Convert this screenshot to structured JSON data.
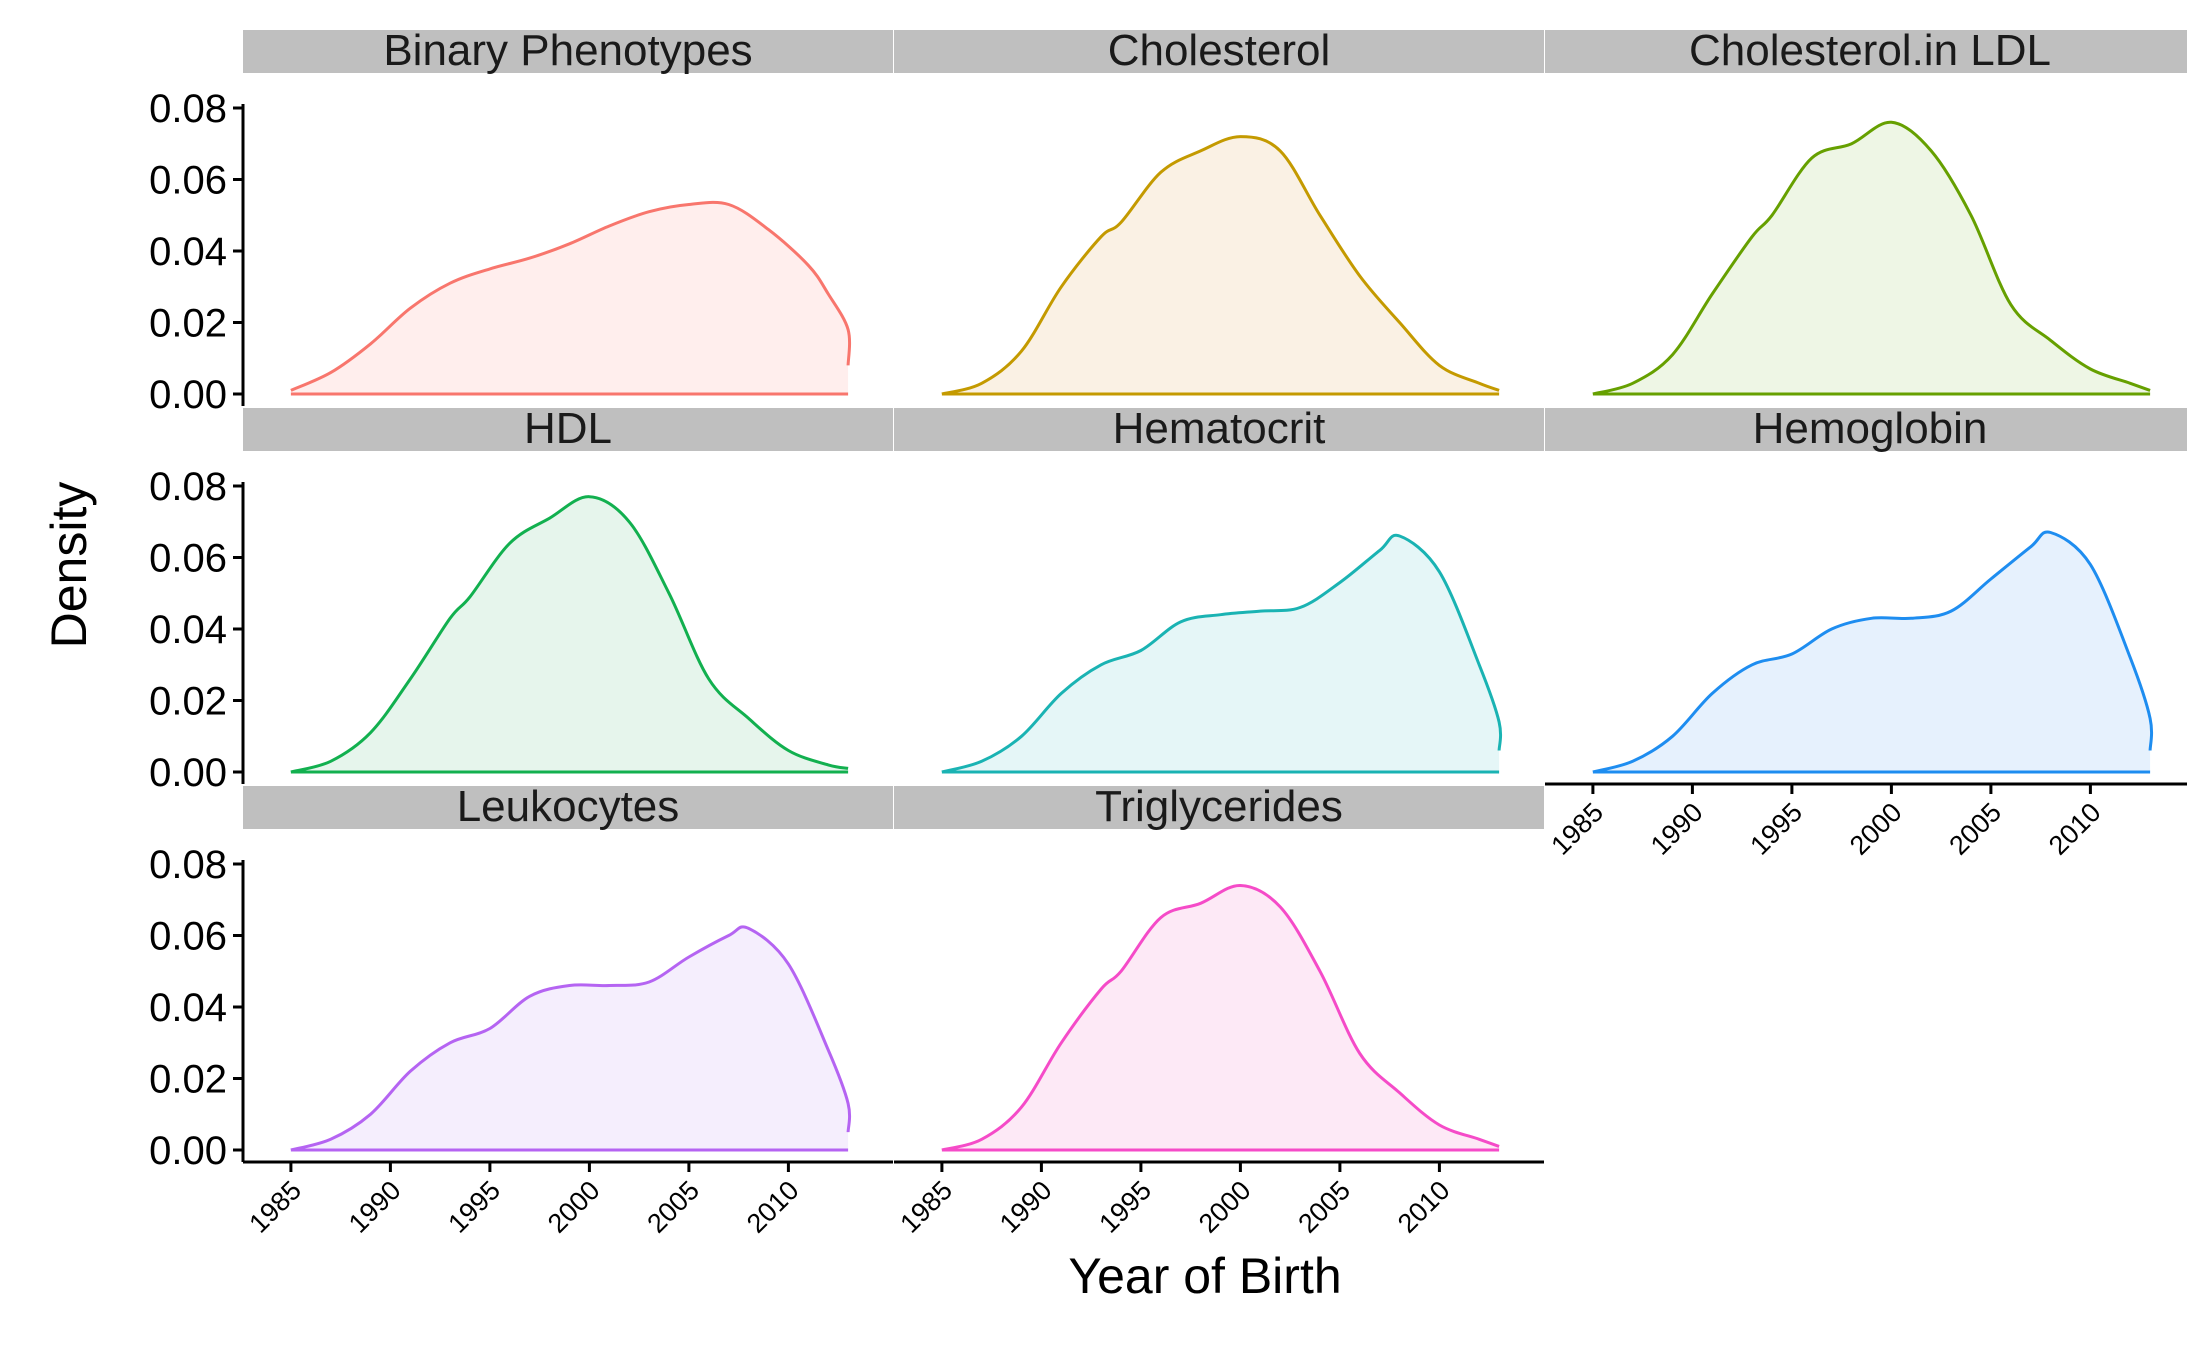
{
  "chart_data": {
    "type": "area",
    "chart_kind": "faceted density plot",
    "xlabel": "Year of Birth",
    "ylabel": "Density",
    "xlim": [
      1984,
      2014
    ],
    "ylim": [
      0,
      0.08
    ],
    "x_ticks": [
      1985,
      1990,
      1995,
      2000,
      2005,
      2010
    ],
    "y_ticks": [
      "0.00",
      "0.02",
      "0.04",
      "0.06",
      "0.08"
    ],
    "grid": false,
    "legend": "none",
    "facets": [
      {
        "name": "Binary Phenotypes",
        "color": "#F8766D",
        "fill": "#FFEEED",
        "x": [
          1985,
          1987,
          1989,
          1991,
          1993,
          1995,
          1997,
          1999,
          2001,
          2003,
          2005,
          2007,
          2009,
          2011,
          2012,
          2013,
          2013
        ],
        "y": [
          0.001,
          0.006,
          0.014,
          0.024,
          0.031,
          0.035,
          0.038,
          0.042,
          0.047,
          0.051,
          0.053,
          0.053,
          0.046,
          0.036,
          0.028,
          0.018,
          0.008
        ]
      },
      {
        "name": "Cholesterol",
        "color": "#C49A00",
        "fill": "#FAF1E4",
        "x": [
          1985,
          1987,
          1989,
          1991,
          1993,
          1994,
          1996,
          1998,
          2000,
          2002,
          2004,
          2006,
          2008,
          2010,
          2012,
          2013
        ],
        "y": [
          0.0,
          0.003,
          0.012,
          0.03,
          0.044,
          0.048,
          0.062,
          0.068,
          0.072,
          0.068,
          0.05,
          0.033,
          0.02,
          0.008,
          0.003,
          0.001
        ]
      },
      {
        "name": "Cholesterol.in LDL",
        "color": "#66A000",
        "fill": "#EEF6E5",
        "x": [
          1985,
          1987,
          1989,
          1991,
          1993,
          1994,
          1996,
          1998,
          2000,
          2002,
          2004,
          2006,
          2008,
          2010,
          2012,
          2013
        ],
        "y": [
          0.0,
          0.003,
          0.011,
          0.028,
          0.044,
          0.05,
          0.066,
          0.07,
          0.076,
          0.068,
          0.05,
          0.025,
          0.015,
          0.007,
          0.003,
          0.001
        ]
      },
      {
        "name": "HDL",
        "color": "#12B04F",
        "fill": "#E6F5EC",
        "x": [
          1985,
          1987,
          1989,
          1991,
          1993,
          1994,
          1996,
          1998,
          2000,
          2002,
          2004,
          2006,
          2008,
          2010,
          2012,
          2013
        ],
        "y": [
          0.0,
          0.003,
          0.011,
          0.026,
          0.043,
          0.049,
          0.064,
          0.071,
          0.077,
          0.07,
          0.05,
          0.026,
          0.015,
          0.006,
          0.002,
          0.001
        ]
      },
      {
        "name": "Hematocrit",
        "color": "#1AB3B3",
        "fill": "#E5F6F7",
        "x": [
          1985,
          1987,
          1989,
          1991,
          1993,
          1995,
          1997,
          1999,
          2001,
          2003,
          2005,
          2007,
          2008,
          2010,
          2012,
          2013,
          2013
        ],
        "y": [
          0.0,
          0.003,
          0.01,
          0.022,
          0.03,
          0.034,
          0.042,
          0.044,
          0.045,
          0.046,
          0.053,
          0.062,
          0.066,
          0.056,
          0.03,
          0.014,
          0.006
        ]
      },
      {
        "name": "Hemoglobin",
        "color": "#1E8DF0",
        "fill": "#E6F1FD",
        "x": [
          1985,
          1987,
          1989,
          1991,
          1993,
          1995,
          1997,
          1999,
          2001,
          2003,
          2005,
          2007,
          2008,
          2010,
          2012,
          2013,
          2013
        ],
        "y": [
          0.0,
          0.003,
          0.01,
          0.022,
          0.03,
          0.033,
          0.04,
          0.043,
          0.043,
          0.045,
          0.054,
          0.063,
          0.067,
          0.058,
          0.032,
          0.015,
          0.006
        ]
      },
      {
        "name": "Leukocytes",
        "color": "#B564F2",
        "fill": "#F5EEFD",
        "x": [
          1985,
          1987,
          1989,
          1991,
          1993,
          1995,
          1997,
          1999,
          2001,
          2003,
          2005,
          2007,
          2008,
          2010,
          2012,
          2013,
          2013
        ],
        "y": [
          0.0,
          0.003,
          0.01,
          0.022,
          0.03,
          0.034,
          0.043,
          0.046,
          0.046,
          0.047,
          0.054,
          0.06,
          0.062,
          0.052,
          0.028,
          0.013,
          0.005
        ]
      },
      {
        "name": "Triglycerides",
        "color": "#F54BC8",
        "fill": "#FDE9F6",
        "x": [
          1985,
          1987,
          1989,
          1991,
          1993,
          1994,
          1996,
          1998,
          2000,
          2002,
          2004,
          2006,
          2008,
          2010,
          2012,
          2013
        ],
        "y": [
          0.0,
          0.003,
          0.012,
          0.03,
          0.045,
          0.05,
          0.065,
          0.069,
          0.074,
          0.068,
          0.05,
          0.027,
          0.016,
          0.007,
          0.003,
          0.001
        ]
      }
    ]
  }
}
